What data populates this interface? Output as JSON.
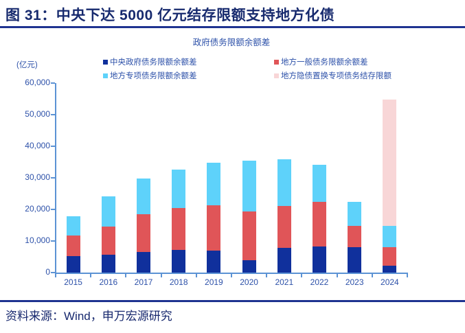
{
  "header": {
    "title": "图 31：中央下达 5000 亿元结存限额支持地方化债"
  },
  "footer": {
    "source": "资料来源：Wind，申万宏源研究"
  },
  "colors": {
    "title_navy": "#172a6e",
    "rule_navy": "#1e3390",
    "chart_text_blue": "#2d51a9",
    "axis_blue": "#5b92d4"
  },
  "chart_data": {
    "type": "bar",
    "stacked": true,
    "title": "政府债务限额余额差",
    "unit_label": "(亿元)",
    "xlabel": "",
    "ylabel": "亿元",
    "ylim": [
      0,
      60000
    ],
    "ytick_interval": 10000,
    "ytick_labels": [
      "60,000",
      "50,000",
      "40,000",
      "30,000",
      "20,000",
      "10,000",
      "0"
    ],
    "grid": false,
    "legend_position": "top",
    "categories": [
      "2015",
      "2016",
      "2017",
      "2018",
      "2019",
      "2020",
      "2021",
      "2022",
      "2023",
      "2024"
    ],
    "series": [
      {
        "name": "中央政府债务限额余额差",
        "color": "#10309c",
        "values": [
          5200,
          5700,
          6500,
          7200,
          7000,
          4000,
          7800,
          8200,
          8100,
          2200
        ]
      },
      {
        "name": "地方一般债务限额余额差",
        "color": "#e05558",
        "values": [
          6500,
          8800,
          11900,
          13200,
          14300,
          15300,
          13200,
          14200,
          6700,
          5800
        ]
      },
      {
        "name": "地方专项债务限额余额差",
        "color": "#5ed2fa",
        "values": [
          6100,
          9600,
          11300,
          12200,
          13500,
          16100,
          14900,
          11800,
          7700,
          6700
        ]
      },
      {
        "name": "地方隐债置换专项债务结存限额",
        "color": "#f8d6d7",
        "values": [
          0,
          0,
          0,
          0,
          0,
          0,
          0,
          0,
          0,
          40100
        ]
      }
    ]
  }
}
